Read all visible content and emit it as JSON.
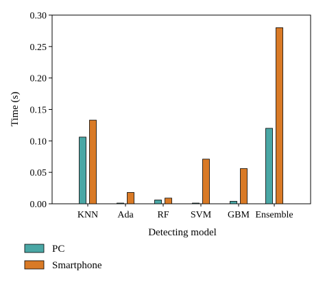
{
  "chart_data": {
    "type": "bar",
    "title": "",
    "xlabel": "Detecting model",
    "ylabel": "Time (s)",
    "ylim": [
      0,
      0.3
    ],
    "yticks": [
      "0.00",
      "0.05",
      "0.10",
      "0.15",
      "0.20",
      "0.25",
      "0.30"
    ],
    "categories": [
      "KNN",
      "Ada",
      "RF",
      "SVM",
      "GBM",
      "Ensemble"
    ],
    "series": [
      {
        "name": "PC",
        "color": "#4aa7a5",
        "values": [
          0.106,
          0.001,
          0.006,
          0.001,
          0.004,
          0.12
        ]
      },
      {
        "name": "Smartphone",
        "color": "#d97a26",
        "values": [
          0.133,
          0.018,
          0.009,
          0.071,
          0.056,
          0.28
        ]
      }
    ],
    "grid": false,
    "legend_position": "bottom-left"
  }
}
